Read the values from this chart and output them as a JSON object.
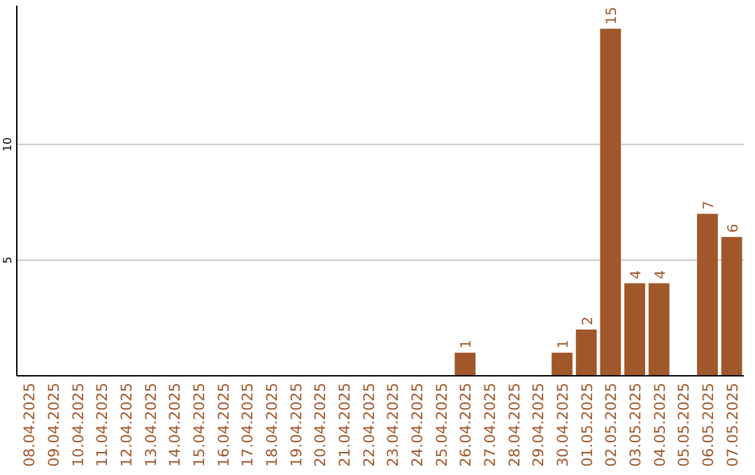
{
  "chart_data": {
    "type": "bar",
    "categories": [
      "08.04.2025",
      "09.04.2025",
      "10.04.2025",
      "11.04.2025",
      "12.04.2025",
      "13.04.2025",
      "14.04.2025",
      "15.04.2025",
      "16.04.2025",
      "17.04.2025",
      "18.04.2025",
      "19.04.2025",
      "20.04.2025",
      "21.04.2025",
      "22.04.2025",
      "23.04.2025",
      "24.04.2025",
      "25.04.2025",
      "26.04.2025",
      "27.04.2025",
      "28.04.2025",
      "29.04.2025",
      "30.04.2025",
      "01.05.2025",
      "02.05.2025",
      "03.05.2025",
      "04.05.2025",
      "05.05.2025",
      "06.05.2025",
      "07.05.2025"
    ],
    "values": [
      0,
      0,
      0,
      0,
      0,
      0,
      0,
      0,
      0,
      0,
      0,
      0,
      0,
      0,
      0,
      0,
      0,
      0,
      1,
      0,
      0,
      0,
      1,
      2,
      15,
      4,
      4,
      0,
      7,
      6
    ],
    "value_labels": [
      null,
      null,
      null,
      null,
      null,
      null,
      null,
      null,
      null,
      null,
      null,
      null,
      null,
      null,
      null,
      null,
      null,
      null,
      "1",
      null,
      null,
      null,
      "1",
      "2",
      "15",
      "4",
      "4",
      null,
      "7",
      "6"
    ],
    "color": "#a0572a",
    "ylim": [
      0,
      16
    ],
    "yticks": [
      5,
      10
    ],
    "grid": "y"
  }
}
